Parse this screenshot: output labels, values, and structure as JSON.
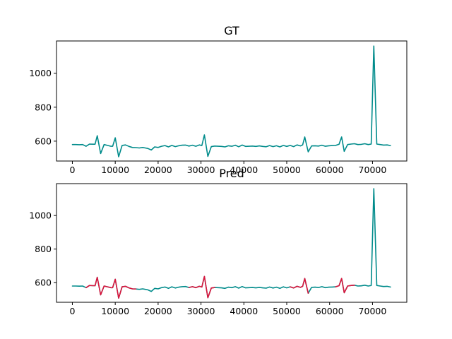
{
  "chart_data": [
    {
      "type": "line",
      "title": "GT",
      "xlabel": "",
      "ylabel": "",
      "xlim": [
        -3700,
        78000
      ],
      "ylim": [
        483,
        1190
      ],
      "xticks": [
        0,
        10000,
        20000,
        30000,
        40000,
        50000,
        60000,
        70000
      ],
      "yticks": [
        600,
        800,
        1000
      ],
      "grid": false,
      "legend": null,
      "series": [
        {
          "color": "#008B8B",
          "x": [
            0,
            800,
            1600,
            2400,
            3200,
            4000,
            4800,
            5300,
            5800,
            6600,
            7400,
            8200,
            9000,
            9400,
            10000,
            10800,
            11600,
            12400,
            13200,
            14000,
            14800,
            15600,
            16400,
            17000,
            17600,
            18400,
            19200,
            20000,
            20800,
            21600,
            22400,
            23200,
            24000,
            24800,
            25600,
            26400,
            27200,
            28000,
            28800,
            29600,
            30200,
            30800,
            31600,
            32400,
            33200,
            34000,
            34800,
            35600,
            36400,
            37200,
            38000,
            38800,
            39600,
            40400,
            41200,
            42000,
            42800,
            43600,
            44400,
            45200,
            46000,
            46800,
            47600,
            48400,
            49200,
            50000,
            50800,
            51600,
            52400,
            53200,
            53700,
            54200,
            55000,
            55800,
            56600,
            57400,
            58200,
            59000,
            59800,
            60600,
            61400,
            62200,
            62800,
            63400,
            64200,
            65000,
            65800,
            66600,
            67400,
            68200,
            69000,
            69700,
            70300,
            71000,
            71800,
            72600,
            73400,
            74200
          ],
          "y": [
            580,
            580,
            579,
            580,
            570,
            583,
            582,
            582,
            632,
            527,
            580,
            575,
            570,
            570,
            620,
            508,
            575,
            578,
            569,
            563,
            562,
            560,
            563,
            560,
            557,
            548,
            566,
            563,
            570,
            574,
            566,
            575,
            568,
            573,
            576,
            577,
            571,
            576,
            570,
            578,
            574,
            637,
            510,
            568,
            571,
            570,
            569,
            566,
            573,
            570,
            576,
            567,
            577,
            569,
            570,
            571,
            569,
            572,
            569,
            567,
            574,
            568,
            573,
            566,
            575,
            569,
            575,
            568,
            578,
            572,
            578,
            625,
            537,
            572,
            573,
            571,
            576,
            570,
            573,
            574,
            575,
            582,
            625,
            540,
            580,
            583,
            585,
            580,
            581,
            585,
            580,
            583,
            1160,
            583,
            580,
            577,
            578,
            574
          ],
          "name": ""
        }
      ]
    },
    {
      "type": "line",
      "title": "Pred",
      "xlabel": "",
      "ylabel": "",
      "xlim": [
        -3700,
        78000
      ],
      "ylim": [
        483,
        1190
      ],
      "xticks": [
        0,
        10000,
        20000,
        30000,
        40000,
        50000,
        60000,
        70000
      ],
      "yticks": [
        600,
        800,
        1000
      ],
      "grid": false,
      "legend": null,
      "series": [
        {
          "color": "#008B8B",
          "x": [
            0,
            800,
            1600,
            2400,
            3200,
            4000,
            4800,
            5300,
            5800,
            6600,
            7400,
            8200,
            9000,
            9400,
            10000,
            10800,
            11600,
            12400,
            13200,
            14000,
            14800,
            15600,
            16400,
            17000,
            17600,
            18400,
            19200,
            20000,
            20800,
            21600,
            22400,
            23200,
            24000,
            24800,
            25600,
            26400,
            27200,
            28000,
            28800,
            29600,
            30200,
            30800,
            31600,
            32400,
            33200,
            34000,
            34800,
            35600,
            36400,
            37200,
            38000,
            38800,
            39600,
            40400,
            41200,
            42000,
            42800,
            43600,
            44400,
            45200,
            46000,
            46800,
            47600,
            48400,
            49200,
            50000,
            50800,
            51600,
            52400,
            53200,
            53700,
            54200,
            55000,
            55800,
            56600,
            57400,
            58200,
            59000,
            59800,
            60600,
            61400,
            62200,
            62800,
            63400,
            64200,
            65000,
            65800,
            66600,
            67400,
            68200,
            69000,
            69700,
            70300,
            71000,
            71800,
            72600,
            73400,
            74200
          ],
          "y": [
            580,
            580,
            579,
            580,
            570,
            583,
            582,
            582,
            632,
            527,
            580,
            575,
            570,
            570,
            620,
            508,
            575,
            578,
            569,
            563,
            562,
            560,
            563,
            560,
            557,
            548,
            566,
            563,
            570,
            574,
            566,
            575,
            568,
            573,
            576,
            577,
            571,
            576,
            570,
            578,
            574,
            637,
            510,
            568,
            571,
            570,
            569,
            566,
            573,
            570,
            576,
            567,
            577,
            569,
            570,
            571,
            569,
            572,
            569,
            567,
            574,
            568,
            573,
            566,
            575,
            569,
            575,
            568,
            578,
            572,
            578,
            625,
            537,
            572,
            573,
            571,
            576,
            570,
            573,
            574,
            575,
            582,
            625,
            540,
            580,
            583,
            585,
            580,
            581,
            585,
            580,
            583,
            1160,
            583,
            580,
            577,
            578,
            574
          ],
          "name": ""
        },
        {
          "color": "#DC143C",
          "segments": [
            {
              "x": [
                3200,
                4000,
                4800,
                5300,
                5800,
                6600,
                7400,
                8200,
                9000,
                9400,
                10000,
                10800,
                11600,
                12400,
                13200,
                14000,
                14800
              ],
              "y": [
                570,
                583,
                582,
                582,
                632,
                527,
                580,
                575,
                570,
                570,
                620,
                508,
                575,
                578,
                569,
                563,
                562
              ]
            },
            {
              "x": [
                27200,
                28000,
                28800,
                29600,
                30200,
                30800,
                31600,
                32400,
                33200
              ],
              "y": [
                571,
                576,
                570,
                578,
                574,
                637,
                510,
                568,
                571
              ]
            },
            {
              "x": [
                50800,
                51600,
                52400,
                53200,
                53700,
                54200,
                55000
              ],
              "y": [
                575,
                568,
                578,
                572,
                578,
                625,
                537
              ]
            },
            {
              "x": [
                61400,
                62200,
                62800,
                63400,
                64200,
                65000,
                65800
              ],
              "y": [
                575,
                582,
                625,
                540,
                580,
                583,
                585
              ]
            }
          ],
          "name": ""
        }
      ]
    }
  ]
}
